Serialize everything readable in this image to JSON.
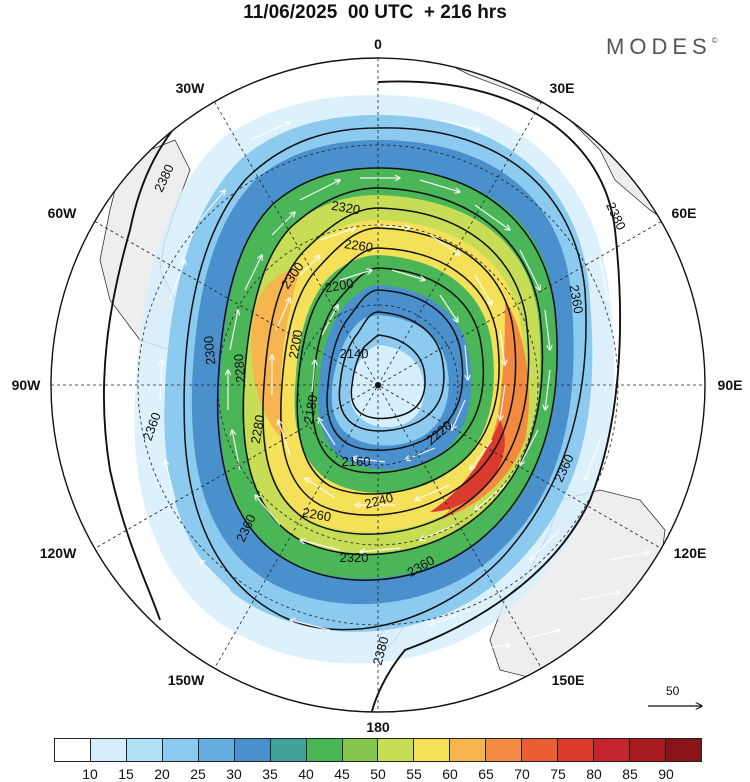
{
  "title": "11/06/2025  00 UTC  + 216 hrs",
  "logo": {
    "text": "MODES",
    "mark": "©"
  },
  "longitude_labels": {
    "n": "0",
    "s": "180",
    "e": "90E",
    "w": "90W",
    "ne30": "30E",
    "ne60": "60E",
    "nw30": "30W",
    "nw60": "60W",
    "se120": "120E",
    "se150": "150E",
    "sw120": "120W",
    "sw150": "150W"
  },
  "contour_labels": [
    "2380",
    "2320",
    "2260",
    "2300",
    "2200",
    "2140",
    "2280",
    "2180",
    "2300",
    "2200",
    "2160",
    "2220",
    "2240",
    "2260",
    "2320",
    "2280",
    "2360",
    "2360",
    "2360",
    "2380",
    "2360",
    "2360",
    "2380"
  ],
  "vector_reference": "50",
  "colorbar": {
    "labels": [
      "10",
      "15",
      "20",
      "25",
      "30",
      "35",
      "40",
      "45",
      "50",
      "55",
      "60",
      "65",
      "70",
      "75",
      "80",
      "85",
      "90"
    ],
    "colors": [
      "#ffffff",
      "#d6effc",
      "#b4e0f7",
      "#8ccbef",
      "#65aedf",
      "#4a90cc",
      "#43a39a",
      "#4bb658",
      "#86c64f",
      "#c6dd55",
      "#f5e05a",
      "#f6b54f",
      "#f28a3f",
      "#ea5e36",
      "#db3b2f",
      "#c4242b",
      "#a6191f",
      "#8a1318"
    ]
  }
}
